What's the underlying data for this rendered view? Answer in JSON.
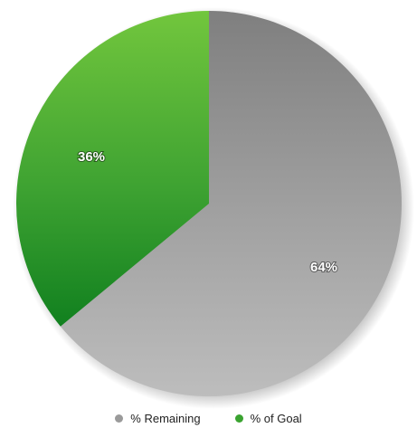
{
  "chart_data": {
    "type": "pie",
    "title": "",
    "slices": [
      {
        "name": "% Remaining",
        "value": 64,
        "label": "64%",
        "color": "#9a9a9a"
      },
      {
        "name": "% of Goal",
        "value": 36,
        "label": "36%",
        "color": "#3aa330"
      }
    ],
    "start_angle_deg": 0,
    "direction": "clockwise",
    "legend_position": "bottom",
    "legend": [
      {
        "label": "% Remaining",
        "color": "#9a9a9a"
      },
      {
        "label": "% of Goal",
        "color": "#3aa330"
      }
    ]
  }
}
